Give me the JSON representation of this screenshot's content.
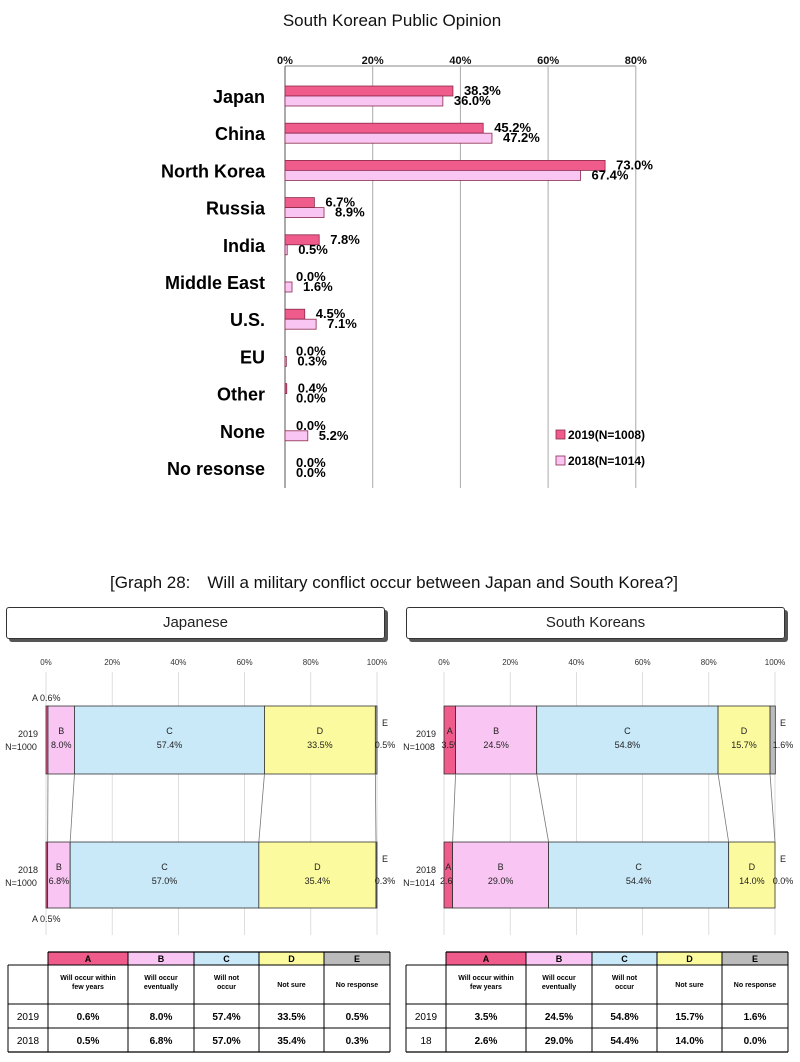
{
  "colors": {
    "y2019": "#EF5B8A",
    "y2018": "#F9C6F3",
    "A": "#EF5B8A",
    "B": "#F9C6F3",
    "C": "#C9E8F8",
    "D": "#FCFA9E",
    "E": "#BBBBBB",
    "hdrJapanese": "#C6E7F8",
    "hdrKorean": "#F9BFF0"
  },
  "chart_data": [
    {
      "type": "bar",
      "orientation": "horizontal",
      "title": "South Korean Public Opinion",
      "categories": [
        "Japan",
        "China",
        "North Korea",
        "Russia",
        "India",
        "Middle East",
        "U.S.",
        "EU",
        "Other",
        "None",
        "No resonse"
      ],
      "series": [
        {
          "name": "2019(N=1008)",
          "values": [
            38.3,
            45.2,
            73.0,
            6.7,
            7.8,
            0.0,
            4.5,
            0.0,
            0.4,
            0.0,
            0.0
          ],
          "labels": [
            "38.3%",
            "45.2%",
            "73.0%",
            "6.7%",
            "7.8%",
            "0.0%",
            "4.5%",
            "0.0%",
            "0.4%",
            "0.0%",
            "0.0%"
          ]
        },
        {
          "name": "2018(N=1014)",
          "values": [
            36.0,
            47.2,
            67.4,
            8.9,
            0.5,
            1.6,
            7.1,
            0.3,
            0.0,
            5.2,
            0.0
          ],
          "labels": [
            "36.0%",
            "47.2%",
            "67.4%",
            "8.9%",
            "0.5%",
            "1.6%",
            "7.1%",
            "0.3%",
            "0.0%",
            "5.2%",
            "0.0%"
          ]
        }
      ],
      "xlim": [
        0,
        80
      ],
      "ticks": [
        0,
        20,
        40,
        60,
        80
      ],
      "tick_labels": [
        "0%",
        "20%",
        "40%",
        "60%",
        "80%"
      ],
      "legend": "bottom-right"
    },
    {
      "type": "stacked-bar",
      "title": "[Graph 28:　Will a military conflict occur between Japan and South Korea?]",
      "panel": "Japanese",
      "ticks": [
        0,
        20,
        40,
        60,
        80,
        100
      ],
      "tick_labels": [
        "0%",
        "20%",
        "40%",
        "60%",
        "80%",
        "100%"
      ],
      "categories": [
        "A",
        "B",
        "C",
        "D",
        "E"
      ],
      "rows": [
        {
          "year": "2019",
          "n": "N=1000",
          "values": [
            0.6,
            8.0,
            57.4,
            33.5,
            0.5
          ],
          "labels": [
            "0.6%",
            "8.0%",
            "57.4%",
            "33.5%",
            "0.5%"
          ]
        },
        {
          "year": "2018",
          "n": "N=1000",
          "values": [
            0.5,
            6.8,
            57.0,
            35.4,
            0.3
          ],
          "labels": [
            "0.5%",
            "6.8%",
            "57.0%",
            "35.4%",
            "0.3%"
          ]
        }
      ]
    },
    {
      "type": "stacked-bar",
      "panel": "South Koreans",
      "ticks": [
        0,
        20,
        40,
        60,
        80,
        100
      ],
      "tick_labels": [
        "0%",
        "20%",
        "40%",
        "60%",
        "80%",
        "100%"
      ],
      "categories": [
        "A",
        "B",
        "C",
        "D",
        "E"
      ],
      "rows": [
        {
          "year": "2019",
          "n": "N=1008",
          "values": [
            3.5,
            24.5,
            54.8,
            15.7,
            1.6
          ],
          "labels": [
            "3.5%",
            "24.5%",
            "54.8%",
            "15.7%",
            "1.6%"
          ]
        },
        {
          "year": "2018",
          "n": "N=1014",
          "values": [
            2.6,
            29.0,
            54.4,
            14.0,
            0.0
          ],
          "labels": [
            "2.6%",
            "29.0%",
            "54.4%",
            "14.0%",
            "0.0%"
          ]
        }
      ]
    }
  ],
  "tables": [
    {
      "panel": "Japanese",
      "letters": [
        "A",
        "B",
        "C",
        "D",
        "E"
      ],
      "headers": [
        "Will occur within few years",
        "Will occur eventually",
        "Will not occur",
        "Not sure",
        "No response"
      ],
      "rows": [
        {
          "year": "2019",
          "values": [
            "0.6%",
            "8.0%",
            "57.4%",
            "33.5%",
            "0.5%"
          ]
        },
        {
          "year": "2018",
          "values": [
            "0.5%",
            "6.8%",
            "57.0%",
            "35.4%",
            "0.3%"
          ]
        }
      ]
    },
    {
      "panel": "South Koreans",
      "letters": [
        "A",
        "B",
        "C",
        "D",
        "E"
      ],
      "headers": [
        "Will occur within few years",
        "Will occur eventually",
        "Will not occur",
        "Not sure",
        "No response"
      ],
      "rows": [
        {
          "year": "2019",
          "values": [
            "3.5%",
            "24.5%",
            "54.8%",
            "15.7%",
            "1.6%"
          ]
        },
        {
          "year": "18",
          "values": [
            "2.6%",
            "29.0%",
            "54.4%",
            "14.0%",
            "0.0%"
          ]
        }
      ]
    }
  ]
}
